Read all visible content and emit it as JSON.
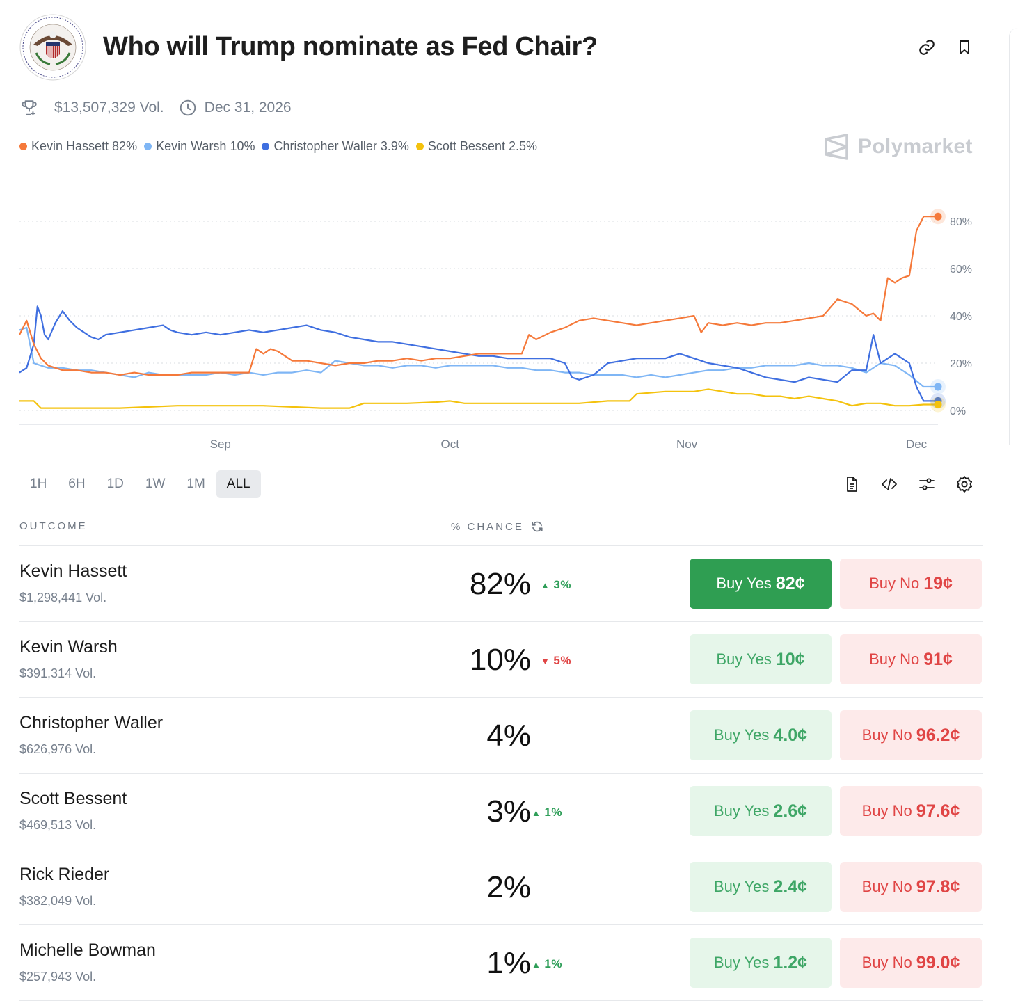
{
  "header": {
    "title": "Who will Trump nominate as Fed Chair?",
    "logo_text": "BOARD OF GOVERNORS OF THE FEDERAL RESERVE SYSTEM"
  },
  "meta": {
    "volume": "$13,507,329 Vol.",
    "end_date": "Dec 31, 2026"
  },
  "legend": [
    {
      "label": "Kevin Hassett 82%",
      "color": "#f5793a"
    },
    {
      "label": "Kevin Warsh 10%",
      "color": "#7fb6f5"
    },
    {
      "label": "Christopher Waller 3.9%",
      "color": "#3f6fe0"
    },
    {
      "label": "Scott Bessent 2.5%",
      "color": "#f4c20d"
    }
  ],
  "watermark": "Polymarket",
  "ranges": [
    "1H",
    "6H",
    "1D",
    "1W",
    "1M",
    "ALL"
  ],
  "active_range": "ALL",
  "table": {
    "col_outcome": "OUTCOME",
    "col_chance": "% CHANCE",
    "rows": [
      {
        "name": "Kevin Hassett",
        "vol": "$1,298,441 Vol.",
        "pct": "82%",
        "change": "3%",
        "dir": "up",
        "yes_label": "Buy Yes",
        "yes_price": "82¢",
        "no_label": "Buy No",
        "no_price": "19¢",
        "primary": true
      },
      {
        "name": "Kevin Warsh",
        "vol": "$391,314 Vol.",
        "pct": "10%",
        "change": "5%",
        "dir": "down",
        "yes_label": "Buy Yes",
        "yes_price": "10¢",
        "no_label": "Buy No",
        "no_price": "91¢"
      },
      {
        "name": "Christopher Waller",
        "vol": "$626,976 Vol.",
        "pct": "4%",
        "change": "",
        "dir": "",
        "yes_label": "Buy Yes",
        "yes_price": "4.0¢",
        "no_label": "Buy No",
        "no_price": "96.2¢"
      },
      {
        "name": "Scott Bessent",
        "vol": "$469,513 Vol.",
        "pct": "3%",
        "change": "1%",
        "dir": "up",
        "yes_label": "Buy Yes",
        "yes_price": "2.6¢",
        "no_label": "Buy No",
        "no_price": "97.6¢"
      },
      {
        "name": "Rick Rieder",
        "vol": "$382,049 Vol.",
        "pct": "2%",
        "change": "",
        "dir": "",
        "yes_label": "Buy Yes",
        "yes_price": "2.4¢",
        "no_label": "Buy No",
        "no_price": "97.8¢"
      },
      {
        "name": "Michelle Bowman",
        "vol": "$257,943 Vol.",
        "pct": "1%",
        "change": "1%",
        "dir": "up",
        "yes_label": "Buy Yes",
        "yes_price": "1.2¢",
        "no_label": "Buy No",
        "no_price": "99.0¢"
      }
    ]
  },
  "chart_data": {
    "type": "line",
    "title": "",
    "xlabel": "",
    "ylabel": "",
    "ylim": [
      0,
      80
    ],
    "y_ticks": [
      "80%",
      "60%",
      "40%",
      "20%",
      "0%"
    ],
    "y_tick_values": [
      80,
      60,
      40,
      20,
      0
    ],
    "x_ticks": [
      "Sep",
      "Oct",
      "Nov",
      "Dec"
    ],
    "x_tick_days": [
      28,
      60,
      93,
      125
    ],
    "x_days_max": 128,
    "grid": true,
    "series": [
      {
        "name": "Kevin Hassett",
        "color": "#f5793a",
        "x": [
          0,
          1,
          2,
          3,
          4,
          5,
          6,
          8,
          10,
          12,
          14,
          16,
          18,
          20,
          22,
          24,
          26,
          28,
          30,
          32,
          33,
          34,
          35,
          36,
          38,
          40,
          42,
          44,
          46,
          48,
          50,
          52,
          54,
          56,
          58,
          60,
          62,
          64,
          66,
          68,
          70,
          71,
          72,
          74,
          76,
          78,
          80,
          82,
          84,
          86,
          88,
          90,
          92,
          94,
          95,
          96,
          98,
          100,
          102,
          104,
          106,
          108,
          110,
          112,
          114,
          116,
          118,
          119,
          120,
          121,
          122,
          123,
          124,
          125,
          126,
          127,
          128
        ],
        "y": [
          32,
          38,
          28,
          22,
          19,
          18,
          17,
          17,
          16,
          16,
          15,
          16,
          15,
          15,
          15,
          16,
          16,
          16,
          16,
          16,
          26,
          24,
          26,
          25,
          21,
          21,
          20,
          19,
          20,
          20,
          21,
          21,
          22,
          21,
          22,
          22,
          23,
          24,
          24,
          24,
          24,
          32,
          30,
          33,
          35,
          38,
          39,
          38,
          37,
          36,
          37,
          38,
          39,
          40,
          33,
          37,
          36,
          37,
          36,
          37,
          37,
          38,
          39,
          40,
          47,
          45,
          40,
          41,
          38,
          56,
          54,
          56,
          57,
          76,
          82,
          82,
          82
        ]
      },
      {
        "name": "Kevin Warsh",
        "color": "#7fb6f5",
        "x": [
          0,
          1,
          2,
          3,
          4,
          6,
          8,
          10,
          12,
          14,
          16,
          18,
          20,
          22,
          24,
          26,
          28,
          30,
          32,
          34,
          36,
          38,
          40,
          42,
          44,
          46,
          48,
          50,
          52,
          54,
          56,
          58,
          60,
          62,
          64,
          66,
          68,
          70,
          72,
          74,
          76,
          78,
          80,
          82,
          84,
          86,
          88,
          90,
          92,
          94,
          96,
          98,
          100,
          102,
          104,
          106,
          108,
          110,
          112,
          114,
          116,
          118,
          120,
          122,
          124,
          126,
          128
        ],
        "y": [
          34,
          35,
          20,
          19,
          18,
          18,
          17,
          17,
          16,
          15,
          14,
          16,
          15,
          15,
          15,
          15,
          16,
          15,
          16,
          15,
          16,
          16,
          17,
          16,
          21,
          20,
          19,
          19,
          18,
          19,
          19,
          18,
          19,
          19,
          19,
          19,
          18,
          18,
          17,
          17,
          16,
          16,
          15,
          15,
          15,
          14,
          15,
          14,
          15,
          16,
          17,
          17,
          18,
          18,
          19,
          19,
          19,
          20,
          19,
          19,
          18,
          16,
          20,
          19,
          15,
          10,
          10
        ]
      },
      {
        "name": "Christopher Waller",
        "color": "#3f6fe0",
        "x": [
          0,
          1,
          2,
          2.5,
          3,
          3.5,
          4,
          5,
          6,
          7,
          8,
          9,
          10,
          11,
          12,
          14,
          16,
          18,
          20,
          21,
          22,
          24,
          26,
          28,
          30,
          32,
          34,
          36,
          38,
          40,
          42,
          44,
          46,
          48,
          50,
          52,
          54,
          56,
          58,
          60,
          62,
          64,
          66,
          68,
          70,
          72,
          74,
          76,
          77,
          78,
          80,
          82,
          84,
          86,
          88,
          90,
          92,
          94,
          96,
          98,
          100,
          102,
          104,
          106,
          108,
          110,
          112,
          114,
          116,
          118,
          119,
          120,
          122,
          124,
          125,
          126,
          127,
          128
        ],
        "y": [
          16,
          18,
          28,
          44,
          40,
          32,
          30,
          37,
          42,
          38,
          35,
          33,
          31,
          30,
          32,
          33,
          34,
          35,
          36,
          34,
          33,
          32,
          33,
          32,
          33,
          34,
          33,
          34,
          35,
          36,
          34,
          33,
          31,
          30,
          29,
          29,
          28,
          27,
          26,
          25,
          24,
          23,
          23,
          22,
          22,
          22,
          22,
          20,
          14,
          13,
          15,
          20,
          21,
          22,
          22,
          22,
          24,
          22,
          20,
          19,
          18,
          16,
          14,
          13,
          12,
          14,
          13,
          12,
          17,
          17,
          32,
          20,
          24,
          20,
          10,
          4,
          4,
          4
        ]
      },
      {
        "name": "Scott Bessent",
        "color": "#f4c20d",
        "x": [
          0,
          2,
          3,
          6,
          10,
          14,
          18,
          22,
          26,
          30,
          34,
          38,
          42,
          46,
          48,
          50,
          54,
          58,
          60,
          62,
          66,
          70,
          74,
          78,
          82,
          85,
          86,
          90,
          94,
          96,
          98,
          100,
          102,
          104,
          106,
          108,
          110,
          112,
          114,
          116,
          118,
          120,
          122,
          124,
          126,
          128
        ],
        "y": [
          4,
          4,
          1,
          1,
          1,
          1,
          1.5,
          2,
          2,
          2,
          2,
          1.5,
          1,
          1,
          3,
          3,
          3,
          3.5,
          4,
          3,
          3,
          3,
          3,
          3,
          4,
          4,
          7,
          8,
          8,
          9,
          8,
          7,
          7,
          6,
          6,
          5,
          6,
          5,
          4,
          2,
          3,
          3,
          2,
          2,
          2.5,
          2.5
        ]
      }
    ]
  }
}
